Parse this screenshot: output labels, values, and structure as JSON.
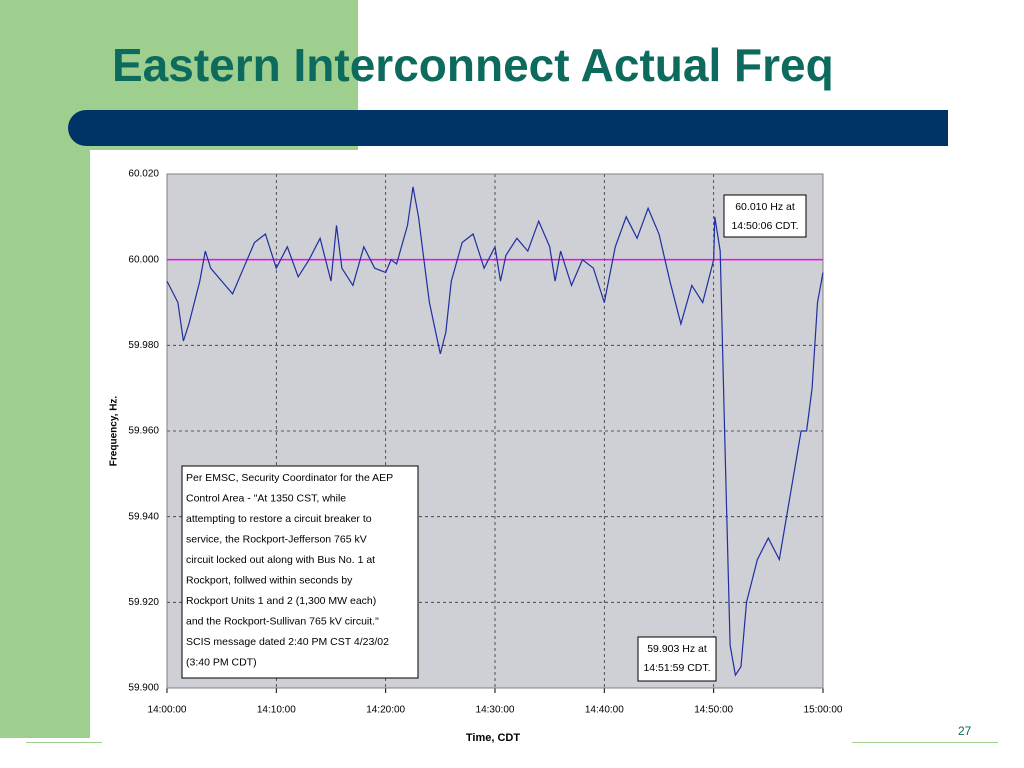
{
  "slide_title": "Eastern Interconnect Actual Freq",
  "slide_number": "27",
  "chart_data": {
    "type": "line",
    "y_label": "Frequency, Hz.",
    "x_label": "Time, CDT",
    "xlim": [
      "14:00:00",
      "15:00:00"
    ],
    "xticks": [
      "14:00:00",
      "14:10:00",
      "14:20:00",
      "14:30:00",
      "14:40:00",
      "14:50:00",
      "15:00:00"
    ],
    "ylim": [
      59.9,
      60.02
    ],
    "yticks": [
      {
        "value": 59.9,
        "label": "59.900"
      },
      {
        "value": 59.92,
        "label": "59.920"
      },
      {
        "value": 59.94,
        "label": "59.940"
      },
      {
        "value": 59.96,
        "label": "59.960"
      },
      {
        "value": 59.98,
        "label": "59.980"
      },
      {
        "value": 60,
        "label": "60.000"
      },
      {
        "value": 60.02,
        "label": "60.020"
      }
    ],
    "grid": true,
    "reference_line": {
      "value": 60,
      "color": "#ff00ff"
    },
    "x": [
      "14:00:00",
      "14:01:00",
      "14:01:30",
      "14:02:00",
      "14:03:00",
      "14:03:30",
      "14:04:00",
      "14:05:00",
      "14:06:00",
      "14:07:00",
      "14:08:00",
      "14:09:00",
      "14:10:00",
      "14:11:00",
      "14:12:00",
      "14:13:00",
      "14:14:00",
      "14:15:00",
      "14:15:30",
      "14:16:00",
      "14:17:00",
      "14:18:00",
      "14:19:00",
      "14:20:00",
      "14:20:30",
      "14:21:00",
      "14:22:00",
      "14:22:30",
      "14:23:00",
      "14:23:30",
      "14:24:00",
      "14:25:00",
      "14:25:30",
      "14:26:00",
      "14:27:00",
      "14:28:00",
      "14:29:00",
      "14:30:00",
      "14:30:30",
      "14:31:00",
      "14:32:00",
      "14:33:00",
      "14:34:00",
      "14:35:00",
      "14:35:30",
      "14:36:00",
      "14:37:00",
      "14:38:00",
      "14:39:00",
      "14:40:00",
      "14:41:00",
      "14:42:00",
      "14:43:00",
      "14:44:00",
      "14:45:00",
      "14:46:00",
      "14:47:00",
      "14:48:00",
      "14:49:00",
      "14:49:30",
      "14:50:00",
      "14:50:06",
      "14:50:36",
      "14:51:00",
      "14:51:30",
      "14:51:59",
      "14:52:30",
      "14:53:00",
      "14:54:00",
      "14:55:00",
      "14:56:00",
      "14:57:00",
      "14:58:00",
      "14:58:30",
      "14:59:00",
      "14:59:30",
      "15:00:00"
    ],
    "series": [
      {
        "name": "Frequency",
        "color": "#1f2f9f",
        "values": [
          59.995,
          59.99,
          59.981,
          59.985,
          59.995,
          60.002,
          59.998,
          59.995,
          59.992,
          59.998,
          60.004,
          60.006,
          59.998,
          60.003,
          59.996,
          60.0,
          60.005,
          59.995,
          60.008,
          59.998,
          59.994,
          60.003,
          59.998,
          59.997,
          60.0,
          59.999,
          60.008,
          60.017,
          60.01,
          60.0,
          59.99,
          59.978,
          59.983,
          59.995,
          60.004,
          60.006,
          59.998,
          60.003,
          59.995,
          60.001,
          60.005,
          60.002,
          60.009,
          60.003,
          59.995,
          60.002,
          59.994,
          60.0,
          59.998,
          59.99,
          60.003,
          60.01,
          60.005,
          60.012,
          60.006,
          59.995,
          59.985,
          59.994,
          59.99,
          59.995,
          60.0,
          60.01,
          60.002,
          59.96,
          59.91,
          59.903,
          59.905,
          59.92,
          59.93,
          59.935,
          59.93,
          59.945,
          59.96,
          59.96,
          59.97,
          59.99,
          59.997
        ]
      }
    ],
    "annotations": [
      {
        "lines": [
          "60.010 Hz at",
          "14:50:06 CDT."
        ]
      },
      {
        "lines": [
          "59.903 Hz at",
          "14:51:59 CDT."
        ]
      },
      {
        "lines": [
          "Per EMSC, Security Coordinator for the AEP",
          "Control Area -  \"At 1350 CST, while",
          "attempting to restore a circuit breaker to",
          "service, the Rockport-Jefferson 765 kV",
          "circuit locked out along with Bus No. 1 at",
          "Rockport, follwed within seconds by",
          "Rockport Units 1 and 2 (1,300 MW each)",
          "and the Rockport-Sullivan 765 kV circuit.\"",
          "SCIS message dated 2:40 PM CST 4/23/02",
          "(3:40 PM CDT)"
        ]
      }
    ]
  }
}
